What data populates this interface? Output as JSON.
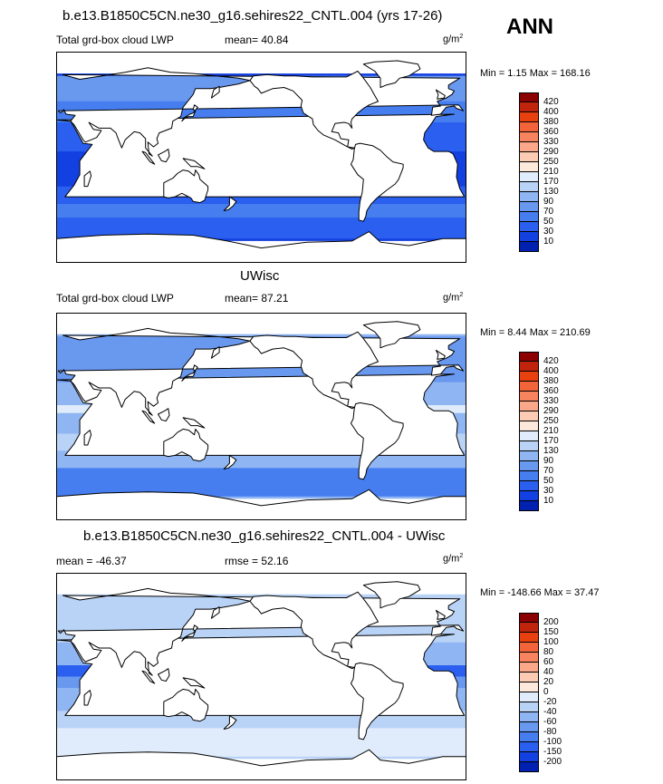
{
  "figure": {
    "season": "ANN"
  },
  "panels": [
    {
      "title": "b.e13.B1850C5CN.ne30_g16.sehires22_CNTL.004 (yrs 17-26)",
      "left_label": "Total grd-box cloud LWP",
      "center_label": "mean=  40.84",
      "units_base": "g/m",
      "units_exp": "2",
      "minmax": "Min =   1.15 Max = 168.16",
      "colorbar": {
        "labels": [
          "420",
          "400",
          "380",
          "360",
          "330",
          "290",
          "250",
          "210",
          "170",
          "130",
          "90",
          "70",
          "50",
          "30",
          "10"
        ],
        "colors": [
          "#8b0000",
          "#c1240c",
          "#e8410f",
          "#f4643b",
          "#f8845f",
          "#fba78a",
          "#fccbb4",
          "#fde9dc",
          "#e0ecfb",
          "#b9d3f7",
          "#8fb5f2",
          "#6998ef",
          "#467ef0",
          "#2a5ff0",
          "#1340e0",
          "#0020b0"
        ]
      },
      "field": {
        "ocean_base": "#1340e0",
        "bands": [
          {
            "lat": [
              -70,
              -52
            ],
            "value": "30",
            "color": "#2a5ff0"
          },
          {
            "lat": [
              -52,
              -40
            ],
            "value": "50",
            "color": "#467ef0"
          },
          {
            "lat": [
              -40,
              -25
            ],
            "value": "30",
            "color": "#2a5ff0"
          },
          {
            "lat": [
              -25,
              5
            ],
            "value": "10",
            "color": "#1340e0"
          },
          {
            "lat": [
              5,
              30
            ],
            "value": "30",
            "color": "#2a5ff0"
          },
          {
            "lat": [
              30,
              48
            ],
            "value": "50",
            "color": "#467ef0"
          },
          {
            "lat": [
              48,
              70
            ],
            "value": "70",
            "color": "#6998ef"
          }
        ]
      }
    },
    {
      "title": "UWisc",
      "left_label": "Total grd-box cloud LWP",
      "center_label": "mean=  87.21",
      "units_base": "g/m",
      "units_exp": "2",
      "minmax": "Min =   8.44 Max = 210.69",
      "colorbar": {
        "labels": [
          "420",
          "400",
          "380",
          "360",
          "330",
          "290",
          "250",
          "210",
          "170",
          "130",
          "90",
          "70",
          "50",
          "30",
          "10"
        ],
        "colors": [
          "#8b0000",
          "#c1240c",
          "#e8410f",
          "#f4643b",
          "#f8845f",
          "#fba78a",
          "#fccbb4",
          "#fde9dc",
          "#e0ecfb",
          "#b9d3f7",
          "#8fb5f2",
          "#6998ef",
          "#467ef0",
          "#2a5ff0",
          "#1340e0",
          "#0020b0"
        ]
      },
      "field": {
        "ocean_base": "#8fb5f2",
        "bands": [
          {
            "lat": [
              -70,
              -45
            ],
            "value": "50",
            "color": "#467ef0"
          },
          {
            "lat": [
              -45,
              -30
            ],
            "value": "90",
            "color": "#8fb5f2"
          },
          {
            "lat": [
              -30,
              -15
            ],
            "value": "130",
            "color": "#b9d3f7"
          },
          {
            "lat": [
              -15,
              3
            ],
            "value": "90",
            "color": "#8fb5f2"
          },
          {
            "lat": [
              3,
              10
            ],
            "value": "170",
            "color": "#e0ecfb"
          },
          {
            "lat": [
              10,
              30
            ],
            "value": "90",
            "color": "#8fb5f2"
          },
          {
            "lat": [
              30,
              70
            ],
            "value": "70",
            "color": "#6998ef"
          }
        ]
      }
    },
    {
      "title": "b.e13.B1850C5CN.ne30_g16.sehires22_CNTL.004 - UWisc",
      "left_label": "mean = -46.37",
      "center_label": "rmse =  52.16",
      "units_base": "g/m",
      "units_exp": "2",
      "minmax": "Min = -148.66 Max =  37.47",
      "colorbar": {
        "labels": [
          "200",
          "150",
          "100",
          "80",
          "60",
          "40",
          "20",
          "0",
          "-20",
          "-40",
          "-60",
          "-80",
          "-100",
          "-150",
          "-200"
        ],
        "colors": [
          "#8b0000",
          "#c1240c",
          "#e8410f",
          "#f4643b",
          "#f8845f",
          "#fba78a",
          "#fccbb4",
          "#fde9dc",
          "#e0ecfb",
          "#b9d3f7",
          "#8fb5f2",
          "#6998ef",
          "#467ef0",
          "#2a5ff0",
          "#1340e0",
          "#0020b0"
        ]
      },
      "field": {
        "ocean_base": "#b9d3f7",
        "bands": [
          {
            "lat": [
              -70,
              -45
            ],
            "value": "-20",
            "color": "#e0ecfb"
          },
          {
            "lat": [
              -45,
              -30
            ],
            "value": "-40",
            "color": "#b9d3f7"
          },
          {
            "lat": [
              -30,
              -10
            ],
            "value": "-60",
            "color": "#8fb5f2"
          },
          {
            "lat": [
              -10,
              0
            ],
            "value": "-80",
            "color": "#6998ef"
          },
          {
            "lat": [
              0,
              10
            ],
            "value": "-100",
            "color": "#2a5ff0"
          },
          {
            "lat": [
              10,
              30
            ],
            "value": "-60",
            "color": "#8fb5f2"
          },
          {
            "lat": [
              30,
              70
            ],
            "value": "-40",
            "color": "#b9d3f7"
          }
        ]
      }
    }
  ]
}
